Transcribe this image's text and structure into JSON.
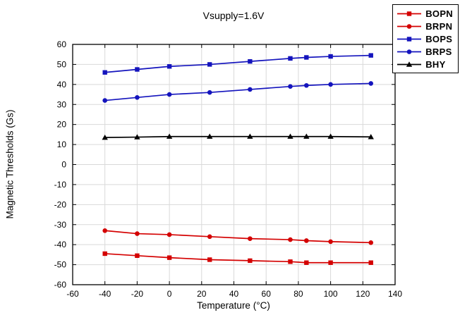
{
  "chart_data": {
    "type": "line",
    "title": "Vsupply=1.6V",
    "xlabel": "Temperature (°C)",
    "ylabel": "Magnetic Thresholds (Gs)",
    "xlim": [
      -60,
      140
    ],
    "ylim": [
      -60,
      60
    ],
    "xticks": [
      -60,
      -40,
      -20,
      0,
      20,
      40,
      60,
      80,
      100,
      120,
      140
    ],
    "yticks": [
      -60,
      -50,
      -40,
      -30,
      -20,
      -10,
      0,
      10,
      20,
      30,
      40,
      50,
      60
    ],
    "grid": true,
    "legend_position": "top-right-outside",
    "grid_color": "#d9d9d9",
    "x": [
      -40,
      -20,
      0,
      25,
      50,
      75,
      85,
      100,
      125
    ],
    "series": [
      {
        "name": "BOPN",
        "color": "#d40000",
        "marker": "square",
        "values": [
          -44.5,
          -45.5,
          -46.5,
          -47.5,
          -48,
          -48.5,
          -49,
          -49,
          -49
        ]
      },
      {
        "name": "BRPN",
        "color": "#d40000",
        "marker": "circle",
        "values": [
          -33,
          -34.5,
          -35,
          -36,
          -37,
          -37.5,
          -38,
          -38.5,
          -39
        ]
      },
      {
        "name": "BOPS",
        "color": "#1414bd",
        "marker": "square",
        "values": [
          46,
          47.5,
          49,
          50,
          51.5,
          53,
          53.5,
          54,
          54.5
        ]
      },
      {
        "name": "BRPS",
        "color": "#1414bd",
        "marker": "circle",
        "values": [
          32,
          33.5,
          35,
          36,
          37.5,
          39,
          39.5,
          40,
          40.5
        ]
      },
      {
        "name": "BHY",
        "color": "#000000",
        "marker": "triangle",
        "values": [
          13.5,
          13.7,
          14,
          14,
          14,
          14,
          14,
          14,
          13.8
        ]
      }
    ]
  }
}
